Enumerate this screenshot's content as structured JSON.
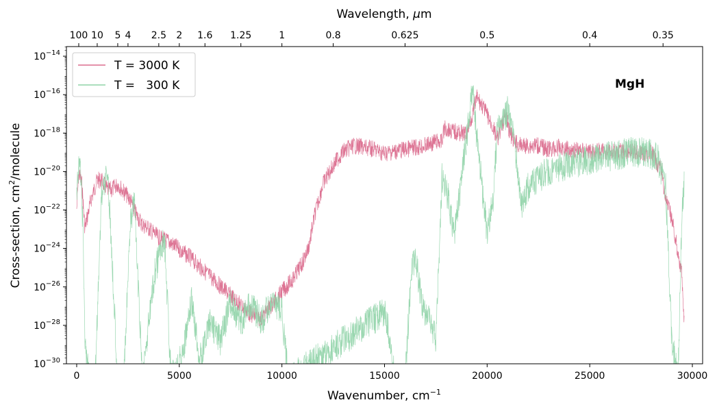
{
  "chart_data": {
    "type": "line",
    "title": "",
    "xlabel": "Wavenumber, cm",
    "xlabel_sup": "−1",
    "ylabel": "Cross-section, cm",
    "ylabel_sup": "2",
    "ylabel_suffix": "/molecule",
    "top_xlabel": "Wavelength, ",
    "top_xlabel_mu": "μ",
    "top_xlabel_suffix": "m",
    "xlim": [
      -500,
      30500
    ],
    "ylim_log10": [
      -30,
      -13.5
    ],
    "y_scale": "log",
    "x_ticks": [
      0,
      5000,
      10000,
      15000,
      20000,
      25000,
      30000
    ],
    "x_tick_labels": [
      "0",
      "5000",
      "10000",
      "15000",
      "20000",
      "25000",
      "30000"
    ],
    "y_ticks_exp": [
      -30,
      -28,
      -26,
      -24,
      -22,
      -20,
      -18,
      -16,
      -14
    ],
    "y_tick_base": "10",
    "y_tick_labels": [
      "−30",
      "−28",
      "−26",
      "−24",
      "−22",
      "−20",
      "−18",
      "−16",
      "−14"
    ],
    "top_ticks_um": [
      100,
      10,
      5,
      4,
      2.5,
      2,
      1.6,
      1.25,
      1,
      0.8,
      0.625,
      0.5,
      0.4,
      0.35
    ],
    "top_tick_labels": [
      "100",
      "10",
      "5",
      "4",
      "2.5",
      "2",
      "1.6",
      "1.25",
      "1",
      "0.8",
      "0.625",
      "0.5",
      "0.4",
      "0.35"
    ],
    "annotation": "MgH",
    "legend_position": "upper-left",
    "grid": false,
    "series": [
      {
        "name": "T = 3000 K",
        "color": "#db6d8e",
        "x": [
          0,
          100,
          250,
          400,
          700,
          1000,
          1200,
          1500,
          1700,
          2000,
          2300,
          2600,
          2900,
          3200,
          3500,
          4000,
          4500,
          5000,
          5500,
          6000,
          6500,
          7000,
          7500,
          8000,
          8500,
          9000,
          9500,
          10000,
          10500,
          11000,
          11300,
          11600,
          11800,
          12000,
          12300,
          12700,
          13000,
          13500,
          14000,
          14500,
          15000,
          15500,
          16000,
          16500,
          17000,
          17500,
          17800,
          17900,
          18500,
          19000,
          19300,
          19500,
          19800,
          20000,
          20300,
          20500,
          20700,
          20900,
          21100,
          21300,
          21600,
          22000,
          22500,
          23000,
          23500,
          24000,
          25000,
          26000,
          27000,
          27500,
          28000,
          28500,
          28700,
          29000,
          29500,
          29600
        ],
        "y_log10": [
          -21.5,
          -19.6,
          -20.2,
          -22.5,
          -21.0,
          -20.0,
          -20.0,
          -20.5,
          -20.5,
          -20.2,
          -20.6,
          -21.0,
          -21.8,
          -22.3,
          -22.5,
          -23.0,
          -23.2,
          -23.6,
          -24.0,
          -24.5,
          -25.0,
          -25.5,
          -26.0,
          -26.5,
          -27.0,
          -27.2,
          -26.5,
          -25.8,
          -25.2,
          -24.3,
          -23.5,
          -21.8,
          -21.0,
          -20.2,
          -19.6,
          -18.9,
          -18.5,
          -18.2,
          -18.3,
          -18.4,
          -18.6,
          -18.5,
          -18.4,
          -18.3,
          -18.2,
          -18.0,
          -18.0,
          -17.3,
          -17.5,
          -17.6,
          -16.5,
          -15.7,
          -16.2,
          -16.6,
          -17.3,
          -17.9,
          -17.2,
          -16.6,
          -17.5,
          -18.0,
          -18.2,
          -18.2,
          -18.2,
          -18.4,
          -18.3,
          -18.4,
          -18.5,
          -18.5,
          -18.5,
          -18.6,
          -18.6,
          -19.5,
          -21.0,
          -22.0,
          -25.0,
          -27.5
        ]
      },
      {
        "name": "T =   300 K",
        "color": "#8fd3a7",
        "x": [
          0,
          100,
          200,
          300,
          400,
          600,
          900,
          1200,
          1400,
          1500,
          1600,
          2000,
          2300,
          2600,
          2800,
          3200,
          3800,
          4200,
          4300,
          4600,
          5200,
          5600,
          6000,
          6500,
          7000,
          7500,
          8000,
          8500,
          9000,
          9500,
          10000,
          10300,
          15000,
          15200,
          15500,
          16000,
          16300,
          16500,
          16800,
          17200,
          17500,
          17800,
          18100,
          18400,
          18700,
          19000,
          19200,
          19300,
          19500,
          19800,
          20000,
          20300,
          20500,
          20800,
          21000,
          21300,
          21700,
          22000,
          22500,
          23000,
          23500,
          24000,
          24500,
          25000,
          25500,
          26000,
          26500,
          27000,
          27500,
          28000,
          28300,
          28700,
          29000,
          29300,
          29500,
          29600
        ],
        "y_log10": [
          -20.5,
          -19.0,
          -19.3,
          -22.0,
          -28.0,
          -30.0,
          -30.0,
          -20.5,
          -19.5,
          -19.3,
          -21.0,
          -30.0,
          -30.0,
          -22.0,
          -20.5,
          -30.0,
          -24.5,
          -22.8,
          -23.2,
          -30.0,
          -28.5,
          -26.0,
          -29.0,
          -27.0,
          -28.0,
          -26.0,
          -27.0,
          -26.0,
          -27.0,
          -26.0,
          -26.5,
          -30.0,
          -26.5,
          -27.5,
          -30.0,
          -30.0,
          -24.5,
          -23.5,
          -26.0,
          -27.0,
          -28.0,
          -19.5,
          -20.5,
          -22.5,
          -20.0,
          -17.5,
          -15.5,
          -15.0,
          -17.5,
          -20.5,
          -22.5,
          -20.5,
          -17.0,
          -16.5,
          -16.0,
          -17.5,
          -21.0,
          -20.0,
          -19.5,
          -19.2,
          -19.0,
          -18.8,
          -18.7,
          -18.6,
          -18.5,
          -18.4,
          -18.3,
          -18.2,
          -18.2,
          -18.3,
          -18.5,
          -20.0,
          -28.0,
          -30.0,
          -21.0,
          -20.0
        ]
      }
    ]
  }
}
